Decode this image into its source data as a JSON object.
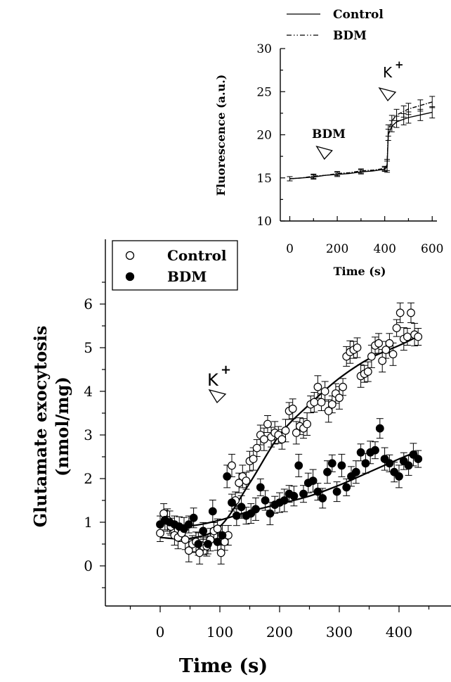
{
  "chart_data": [
    {
      "type": "line",
      "ylabel": "Fluorescence (a.u.)",
      "xlabel": "Time (s)",
      "xlim": [
        -40,
        620
      ],
      "ylim": [
        10,
        30
      ],
      "xticks": [
        0,
        200,
        400,
        600
      ],
      "yticks": [
        10,
        15,
        20,
        25,
        30
      ],
      "legend_position": "top-right",
      "series": [
        {
          "name": "Control",
          "x": [
            0,
            50,
            100,
            150,
            200,
            250,
            300,
            350,
            400,
            410,
            415,
            430,
            450,
            480,
            500,
            550,
            600
          ],
          "y": [
            14.9,
            15.0,
            15.1,
            15.3,
            15.4,
            15.5,
            15.7,
            15.8,
            16.0,
            16.3,
            20.0,
            21.0,
            21.5,
            21.8,
            22.0,
            22.3,
            22.6
          ]
        },
        {
          "name": "BDM",
          "x": [
            0,
            50,
            100,
            150,
            200,
            250,
            300,
            350,
            400,
            410,
            415,
            430,
            450,
            480,
            500,
            550,
            600
          ],
          "y": [
            14.9,
            15.0,
            15.2,
            15.3,
            15.5,
            15.6,
            15.8,
            15.9,
            16.1,
            16.5,
            20.5,
            21.6,
            22.3,
            22.7,
            23.0,
            23.4,
            23.8
          ]
        }
      ],
      "annotations": [
        {
          "text": "BDM",
          "x": 125
        },
        {
          "text": "K",
          "sup": "+",
          "x": 430
        }
      ]
    },
    {
      "type": "scatter",
      "ylabel_line1": "Glutamate exocytosis",
      "ylabel_line2": "(nmol/mg)",
      "xlabel": "Time (s)",
      "xlim": [
        -100,
        470
      ],
      "ylim": [
        -1.2,
        6.8
      ],
      "xticks": [
        0,
        100,
        200,
        300,
        400
      ],
      "yticks": [
        0,
        1,
        2,
        3,
        4,
        5,
        6
      ],
      "legend_position": "top-left",
      "series": [
        {
          "name": "Control",
          "marker": "open-circle",
          "x": [
            0,
            6,
            12,
            18,
            24,
            30,
            36,
            42,
            48,
            54,
            60,
            66,
            72,
            78,
            84,
            90,
            96,
            102,
            108,
            114,
            120,
            126,
            132,
            138,
            144,
            150,
            156,
            162,
            168,
            174,
            180,
            186,
            192,
            198,
            204,
            210,
            216,
            222,
            228,
            234,
            240,
            246,
            252,
            258,
            264,
            270,
            276,
            282,
            288,
            294,
            300,
            306,
            312,
            318,
            324,
            330,
            336,
            342,
            348,
            354,
            360,
            366,
            372,
            378,
            384,
            390,
            396,
            402,
            408,
            414,
            420,
            426,
            432
          ],
          "y": [
            0.75,
            1.2,
            1.05,
            0.9,
            0.7,
            0.65,
            0.75,
            0.6,
            0.35,
            0.5,
            0.55,
            0.3,
            0.45,
            0.45,
            0.6,
            0.8,
            0.85,
            0.3,
            0.55,
            0.7,
            2.3,
            1.5,
            1.9,
            2.05,
            1.95,
            2.4,
            2.45,
            2.7,
            3.0,
            2.9,
            3.25,
            2.95,
            3.05,
            3.0,
            2.9,
            3.1,
            3.55,
            3.6,
            3.05,
            3.2,
            3.15,
            3.25,
            3.7,
            3.75,
            4.1,
            3.75,
            4.0,
            3.55,
            3.7,
            3.95,
            3.85,
            4.1,
            4.8,
            4.9,
            4.95,
            5.0,
            4.35,
            4.4,
            4.45,
            4.8,
            5.05,
            5.1,
            4.7,
            4.95,
            5.1,
            4.85,
            5.45,
            5.8,
            5.2,
            5.25,
            5.8,
            5.3,
            5.25
          ],
          "fit": [
            [
              0,
              0.65
            ],
            [
              50,
              0.63
            ],
            [
              100,
              0.9
            ],
            [
              150,
              1.9
            ],
            [
              200,
              3.0
            ],
            [
              250,
              3.7
            ],
            [
              300,
              4.3
            ],
            [
              350,
              4.75
            ],
            [
              400,
              5.05
            ],
            [
              430,
              5.25
            ]
          ]
        },
        {
          "name": "BDM",
          "marker": "filled-circle",
          "x": [
            0,
            8,
            16,
            24,
            32,
            40,
            48,
            56,
            64,
            72,
            80,
            88,
            96,
            104,
            112,
            120,
            128,
            136,
            144,
            152,
            160,
            168,
            176,
            184,
            192,
            200,
            208,
            216,
            224,
            232,
            240,
            248,
            256,
            264,
            272,
            280,
            288,
            296,
            304,
            312,
            320,
            328,
            336,
            344,
            352,
            360,
            368,
            376,
            384,
            392,
            400,
            408,
            416,
            424,
            432
          ],
          "y": [
            0.95,
            1.05,
            1.0,
            0.95,
            0.9,
            0.85,
            0.95,
            1.1,
            0.5,
            0.8,
            0.5,
            1.25,
            0.55,
            0.7,
            2.05,
            1.45,
            1.15,
            1.35,
            1.15,
            1.2,
            1.3,
            1.8,
            1.5,
            1.2,
            1.4,
            1.45,
            1.5,
            1.65,
            1.6,
            2.3,
            1.65,
            1.9,
            1.95,
            1.7,
            1.55,
            2.15,
            2.35,
            1.7,
            2.3,
            1.8,
            2.05,
            2.15,
            2.6,
            2.35,
            2.6,
            2.65,
            3.15,
            2.45,
            2.35,
            2.15,
            2.05,
            2.4,
            2.3,
            2.55,
            2.45
          ],
          "fit": [
            [
              0,
              0.98
            ],
            [
              50,
              0.92
            ],
            [
              100,
              1.05
            ],
            [
              150,
              1.25
            ],
            [
              200,
              1.42
            ],
            [
              250,
              1.6
            ],
            [
              300,
              1.85
            ],
            [
              350,
              2.15
            ],
            [
              400,
              2.45
            ],
            [
              430,
              2.62
            ]
          ]
        }
      ],
      "annotations": [
        {
          "text": "K",
          "sup": "+",
          "x": 95
        }
      ]
    }
  ]
}
